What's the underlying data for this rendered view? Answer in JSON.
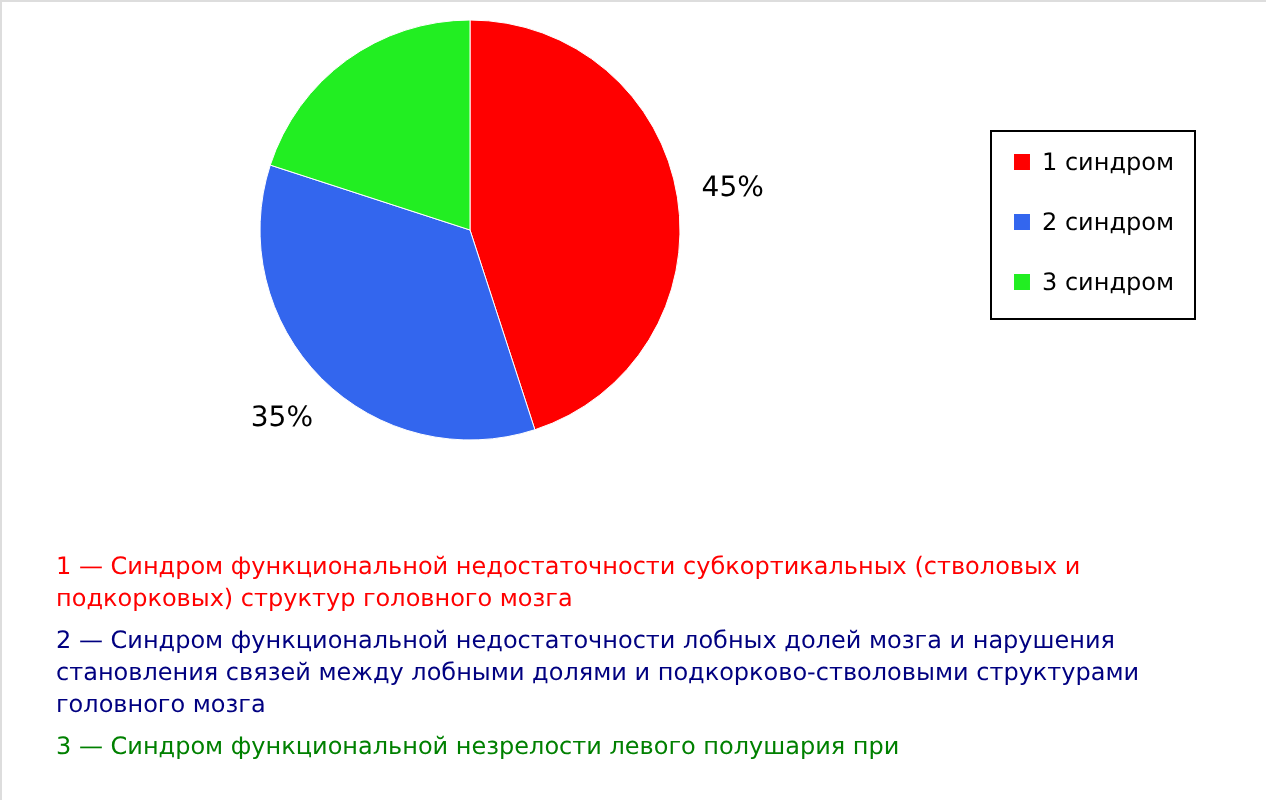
{
  "chart_data": {
    "type": "pie",
    "categories": [
      "1 синдром",
      "2 синдром",
      "3 синдром"
    ],
    "values": [
      45,
      35,
      20
    ],
    "colors": [
      "#ff0000",
      "#3366ee",
      "#22ee22"
    ],
    "value_labels": [
      "45%",
      "35%",
      null
    ],
    "legend": "right",
    "annotations": [
      "1 — Синдром функциональной недостаточности субкортикальных (стволовых и подкорковых) структур головного мозга",
      "2 — Синдром функциональной недостаточности лобных долей мозга и нарушения становления связей между лобными долями и подкорково-стволовыми структурами головного мозга",
      "3 — Синдром функциональной незрелости левого полушария при"
    ]
  }
}
